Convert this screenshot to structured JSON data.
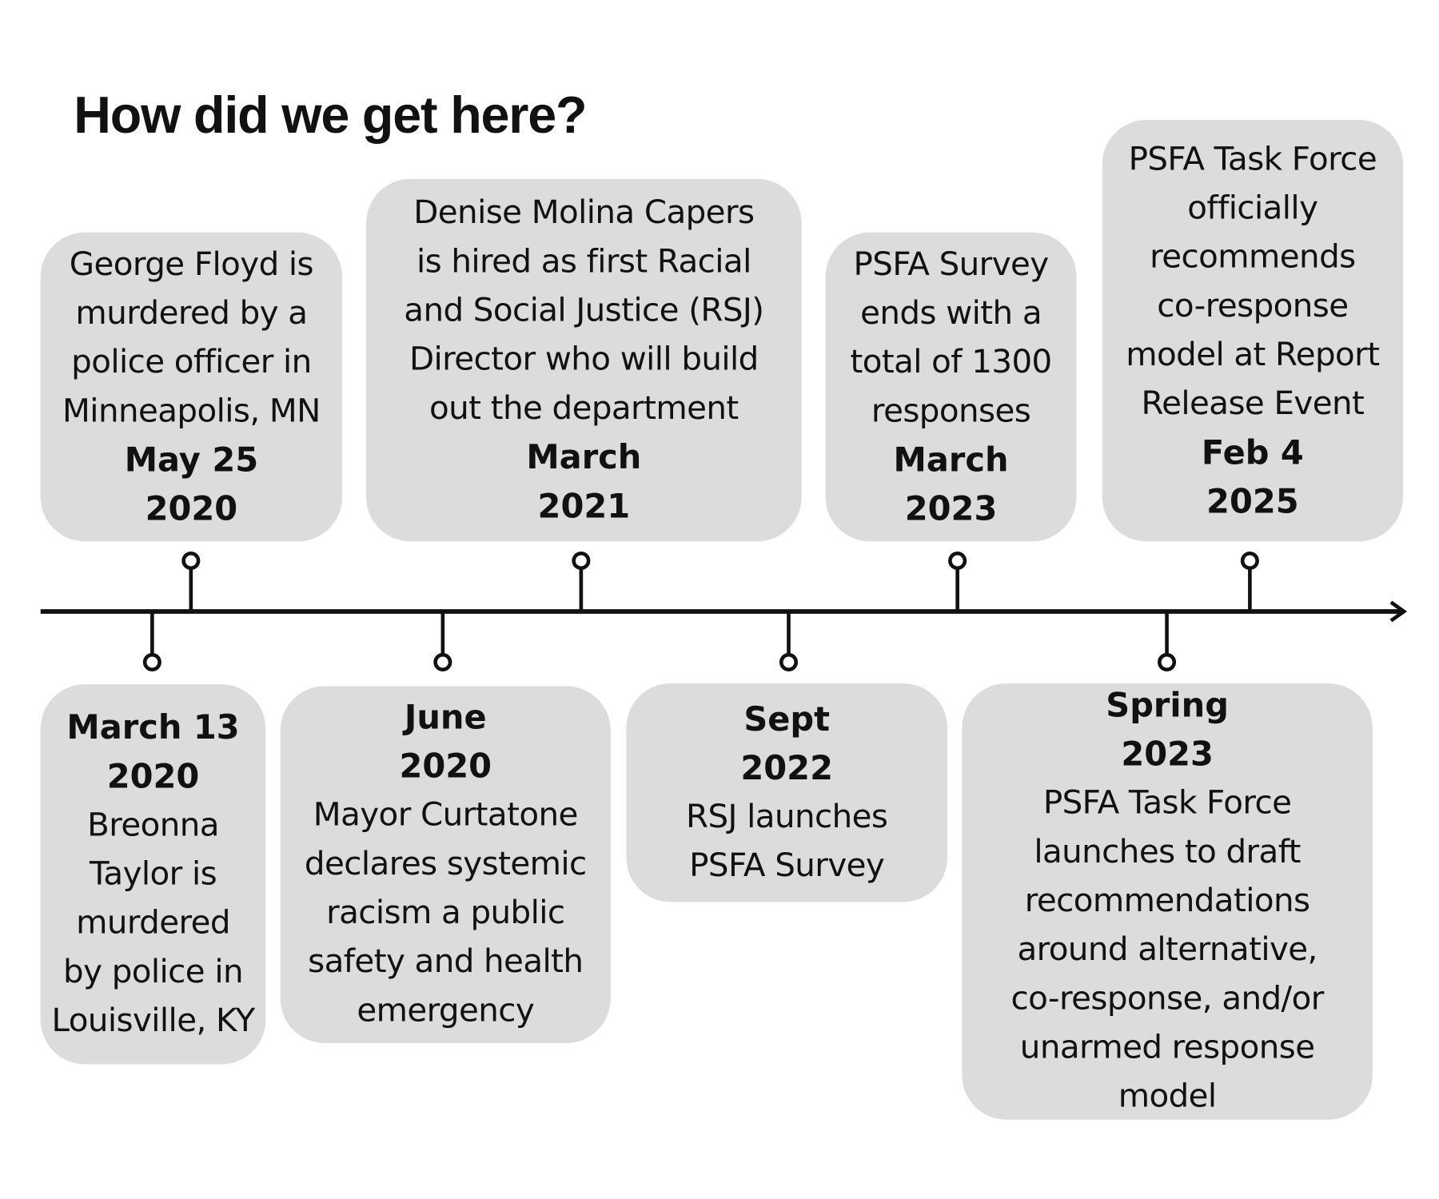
{
  "title": "How did we get here?",
  "events_above": [
    {
      "text": [
        "George Floyd is",
        "murdered by a",
        "police officer in",
        "Minneapolis, MN"
      ],
      "date": [
        "May 25",
        "2020"
      ]
    },
    {
      "text": [
        "Denise Molina Capers",
        "is hired as first Racial",
        "and Social Justice (RSJ)",
        "Director who will build",
        "out the department"
      ],
      "date": [
        "March",
        "2021"
      ]
    },
    {
      "text": [
        "PSFA Survey",
        "ends with a",
        "total of 1300",
        "responses"
      ],
      "date": [
        "March",
        "2023"
      ]
    },
    {
      "text": [
        "PSFA Task Force",
        "officially",
        "recommends",
        "co-response",
        "model at Report",
        "Release Event"
      ],
      "date": [
        "Feb 4",
        "2025"
      ]
    }
  ],
  "events_below": [
    {
      "date": [
        "March 13",
        "2020"
      ],
      "text": [
        "Breonna",
        "Taylor is",
        "murdered",
        "by police in",
        "Louisville, KY"
      ]
    },
    {
      "date": [
        "June",
        "2020"
      ],
      "text": [
        "Mayor Curtatone",
        "declares systemic",
        "racism a public",
        "safety and health",
        "emergency"
      ]
    },
    {
      "date": [
        "Sept",
        "2022"
      ],
      "text": [
        "RSJ launches",
        "PSFA Survey"
      ]
    },
    {
      "date": [
        "Spring",
        "2023"
      ],
      "text": [
        "PSFA Task Force",
        "launches to draft",
        "recommendations",
        "around alternative,",
        "co-response, and/or",
        "unarmed response",
        "model"
      ]
    }
  ],
  "colors": {
    "box": "#dcdcdc",
    "line": "#111111"
  }
}
